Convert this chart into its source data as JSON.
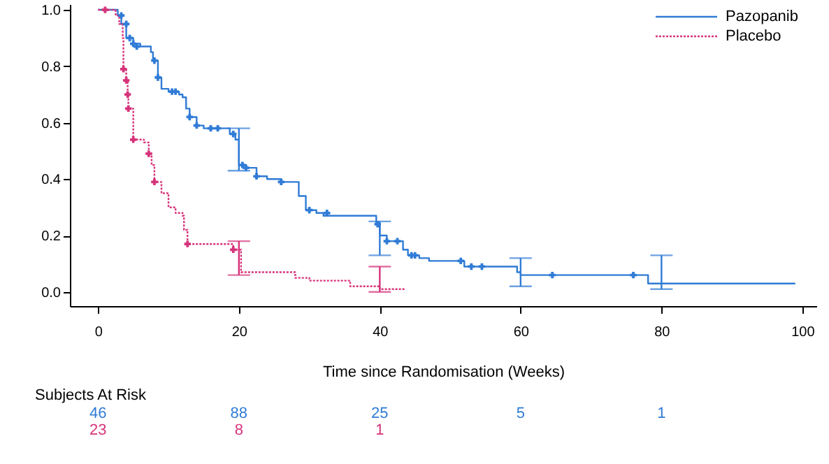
{
  "chart_data": {
    "type": "step",
    "xlabel": "Time since Randomisation (Weeks)",
    "xlim": [
      -4,
      102
    ],
    "xticks": [
      0,
      20,
      40,
      60,
      80,
      100
    ],
    "ylim": [
      -0.05,
      1.02
    ],
    "yticks": [
      {
        "value": 0,
        "label": "0.0"
      },
      {
        "value": 0.2,
        "label": "0.2"
      },
      {
        "value": 0.4,
        "label": "0.4"
      },
      {
        "value": 0.6,
        "label": "0.6"
      },
      {
        "value": 0.8,
        "label": "0.8"
      },
      {
        "value": 1,
        "label": "1.0"
      }
    ],
    "grid": false,
    "legend": "top right",
    "marker": "none",
    "annotations": [
      "Subjects At Risk",
      "46",
      "88",
      "25",
      "5",
      "1",
      "23",
      "8",
      "1"
    ],
    "series": [
      {
        "name": "Pazopanib",
        "color": "#2f7bd6",
        "line_style": "solid",
        "x": [
          0,
          2.8,
          3.3,
          4,
          5,
          6,
          7.5,
          7.8,
          8.5,
          9,
          10,
          11.5,
          12,
          12.5,
          13,
          14,
          15,
          18.7,
          19.5,
          20,
          21,
          22.5,
          24,
          26,
          28.5,
          29.5,
          31,
          32,
          39.5,
          40,
          41,
          43.3,
          44,
          45.6,
          47,
          52,
          59.5,
          60,
          78.1,
          80,
          99
        ],
        "values": [
          1,
          0.98,
          0.95,
          0.9,
          0.88,
          0.87,
          0.85,
          0.82,
          0.76,
          0.72,
          0.71,
          0.7,
          0.69,
          0.65,
          0.62,
          0.59,
          0.58,
          0.56,
          0.54,
          0.45,
          0.44,
          0.41,
          0.4,
          0.39,
          0.34,
          0.29,
          0.28,
          0.27,
          0.24,
          0.2,
          0.18,
          0.15,
          0.13,
          0.12,
          0.11,
          0.09,
          0.07,
          0.06,
          0.03,
          0.03,
          0.03
        ],
        "errors": [
          null,
          null,
          null,
          null,
          null,
          null,
          null,
          null,
          null,
          null,
          null,
          null,
          null,
          null,
          null,
          null,
          null,
          null,
          null,
          [
            0.43,
            0.58
          ],
          null,
          null,
          null,
          null,
          null,
          null,
          null,
          null,
          null,
          [
            0.13,
            0.25
          ],
          null,
          null,
          null,
          null,
          null,
          null,
          null,
          [
            0.02,
            0.12
          ],
          null,
          [
            0.01,
            0.13
          ],
          null
        ]
      },
      {
        "name": "Placebo",
        "color": "#d6337a",
        "line_style": "dotted",
        "x": [
          0,
          2.5,
          3,
          3.5,
          3.6,
          4,
          4.2,
          4.3,
          5,
          6.5,
          7.2,
          7.6,
          8,
          9,
          10,
          11,
          12,
          12.2,
          12.7,
          19.2,
          20,
          20.3,
          28,
          30,
          35.8,
          40,
          43.5
        ],
        "values": [
          1,
          0.98,
          0.95,
          0.9,
          0.79,
          0.75,
          0.7,
          0.65,
          0.54,
          0.53,
          0.49,
          0.45,
          0.39,
          0.35,
          0.3,
          0.28,
          0.27,
          0.22,
          0.17,
          0.15,
          0.15,
          0.07,
          0.05,
          0.04,
          0.02,
          0.01,
          0.01
        ],
        "errors": [
          null,
          null,
          null,
          null,
          null,
          null,
          null,
          null,
          null,
          null,
          null,
          null,
          null,
          null,
          null,
          null,
          null,
          null,
          null,
          null,
          [
            0.06,
            0.18
          ],
          null,
          null,
          null,
          null,
          [
            0.0,
            0.09
          ],
          null
        ]
      },
      {
        "type": "scatter",
        "color": "#2f7bd6",
        "marker": "cross",
        "x": [
          3.3,
          4,
          4.5,
          5,
          5.5,
          8,
          8.5,
          10.5,
          11,
          13,
          14,
          16,
          17,
          19.2,
          20.5,
          21,
          22.5,
          26,
          30,
          32.5,
          39.7,
          41,
          42.5,
          44.5,
          45,
          51.5,
          53,
          54.5,
          64.5,
          76
        ],
        "values": [
          0.98,
          0.95,
          0.9,
          0.88,
          0.87,
          0.82,
          0.76,
          0.71,
          0.71,
          0.62,
          0.59,
          0.58,
          0.58,
          0.56,
          0.45,
          0.44,
          0.41,
          0.39,
          0.29,
          0.28,
          0.24,
          0.18,
          0.18,
          0.13,
          0.13,
          0.11,
          0.09,
          0.09,
          0.06,
          0.06
        ]
      },
      {
        "type": "scatter",
        "color": "#d6337a",
        "marker": "cross",
        "x": [
          1,
          3.6,
          4,
          4.2,
          4.3,
          5,
          7.2,
          8,
          12.7,
          19.2
        ],
        "values": [
          1,
          0.79,
          0.75,
          0.7,
          0.65,
          0.54,
          0.49,
          0.39,
          0.17,
          0.15
        ]
      }
    ]
  }
}
